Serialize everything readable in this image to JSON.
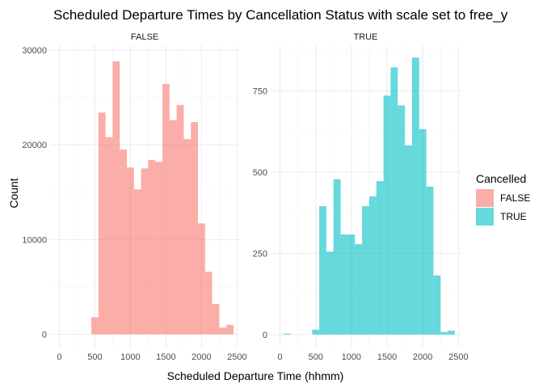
{
  "chart_data": {
    "type": "bar",
    "title": "Scheduled Departure Times by Cancellation Status with scale set to free_y",
    "xlabel": "Scheduled Departure Time (hhmm)",
    "ylabel": "Count",
    "legend": {
      "title": "Cancelled",
      "position": "right",
      "entries": [
        {
          "label": "FALSE",
          "color": "#F8766D"
        },
        {
          "label": "TRUE",
          "color": "#00BFC4"
        }
      ]
    },
    "grid": true,
    "bin_width": 100,
    "x_ticks": [
      0,
      500,
      1000,
      1500,
      2000,
      2500
    ],
    "xlim": [
      -130,
      2530
    ],
    "panels": [
      {
        "strip": "FALSE",
        "color": "#F8766D",
        "ylim": [
          -1400,
          30500
        ],
        "y_ticks": [
          0,
          10000,
          20000,
          30000
        ],
        "bins": [
          {
            "x": 500,
            "value": 1800
          },
          {
            "x": 600,
            "value": 23400
          },
          {
            "x": 700,
            "value": 20800
          },
          {
            "x": 800,
            "value": 28800
          },
          {
            "x": 900,
            "value": 19500
          },
          {
            "x": 1000,
            "value": 17600
          },
          {
            "x": 1100,
            "value": 15300
          },
          {
            "x": 1200,
            "value": 17500
          },
          {
            "x": 1300,
            "value": 18400
          },
          {
            "x": 1400,
            "value": 18200
          },
          {
            "x": 1500,
            "value": 26400
          },
          {
            "x": 1600,
            "value": 22600
          },
          {
            "x": 1700,
            "value": 24200
          },
          {
            "x": 1800,
            "value": 20600
          },
          {
            "x": 1900,
            "value": 22400
          },
          {
            "x": 2000,
            "value": 11700
          },
          {
            "x": 2100,
            "value": 6600
          },
          {
            "x": 2200,
            "value": 3200
          },
          {
            "x": 2300,
            "value": 700
          },
          {
            "x": 2400,
            "value": 1000
          }
        ]
      },
      {
        "strip": "TRUE",
        "color": "#00BFC4",
        "ylim": [
          -40,
          890
        ],
        "y_ticks": [
          0,
          250,
          500,
          750
        ],
        "bins": [
          {
            "x": 100,
            "value": 3
          },
          {
            "x": 500,
            "value": 15
          },
          {
            "x": 600,
            "value": 395
          },
          {
            "x": 700,
            "value": 255
          },
          {
            "x": 800,
            "value": 478
          },
          {
            "x": 900,
            "value": 308
          },
          {
            "x": 1000,
            "value": 308
          },
          {
            "x": 1100,
            "value": 278
          },
          {
            "x": 1200,
            "value": 395
          },
          {
            "x": 1300,
            "value": 425
          },
          {
            "x": 1400,
            "value": 472
          },
          {
            "x": 1500,
            "value": 735
          },
          {
            "x": 1600,
            "value": 822
          },
          {
            "x": 1700,
            "value": 705
          },
          {
            "x": 1800,
            "value": 582
          },
          {
            "x": 1900,
            "value": 852
          },
          {
            "x": 2000,
            "value": 632
          },
          {
            "x": 2100,
            "value": 455
          },
          {
            "x": 2200,
            "value": 182
          },
          {
            "x": 2300,
            "value": 8
          },
          {
            "x": 2400,
            "value": 12
          }
        ]
      }
    ]
  }
}
